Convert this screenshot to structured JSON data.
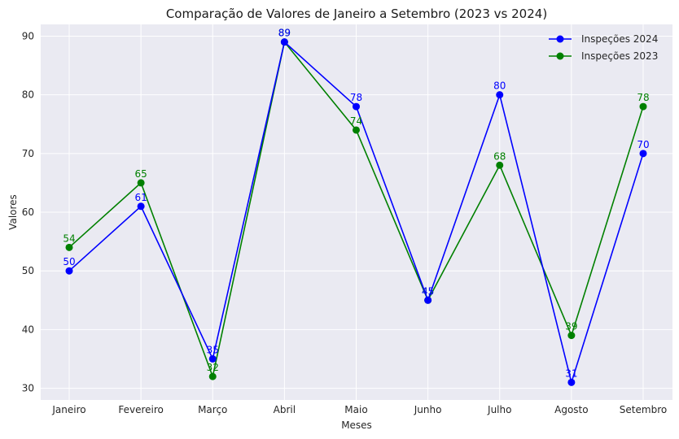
{
  "chart_data": {
    "type": "line",
    "title": "Comparação de Valores de Janeiro a Setembro (2023 vs 2024)",
    "xlabel": "Meses",
    "ylabel": "Valores",
    "categories": [
      "Janeiro",
      "Fevereiro",
      "Março",
      "Abril",
      "Maio",
      "Junho",
      "Julho",
      "Agosto",
      "Setembro"
    ],
    "ylim": [
      28,
      92
    ],
    "yticks": [
      30,
      40,
      50,
      60,
      70,
      80,
      90
    ],
    "grid": true,
    "legend_position": "top-right",
    "series": [
      {
        "name": "Inspeções 2024",
        "color": "#0000ff",
        "values": [
          50,
          61,
          35,
          89,
          78,
          45,
          80,
          31,
          70
        ]
      },
      {
        "name": "Inspeções 2023",
        "color": "#008000",
        "values": [
          54,
          65,
          32,
          89,
          74,
          45,
          68,
          39,
          78
        ]
      }
    ]
  }
}
